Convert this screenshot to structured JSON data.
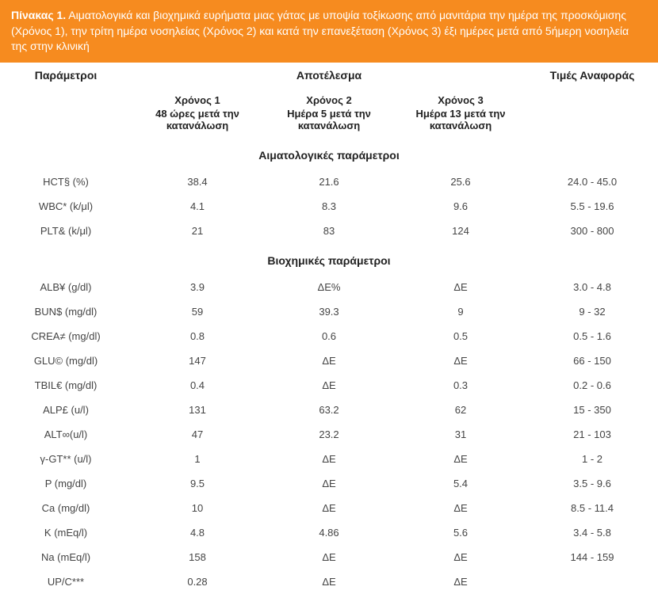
{
  "caption": {
    "bold": "Πίνακας 1.",
    "text": " Αιματολογικά και βιοχημικά ευρήματα μιας γάτας με υποψία τοξίκωσης από μανιτάρια την ημέρα της προσκόμισης (Χρόνος 1), την τρίτη ημέρα νοσηλείας (Χρόνος 2) και κατά την επανεξέταση (Χρόνος 3) έξι ημέρες μετά από 5ήμερη νοσηλεία της στην κλινική"
  },
  "headers": {
    "param": "Παράμετροι",
    "result": "Αποτέλεσμα",
    "ref": "Τιμές Αναφοράς"
  },
  "subheaders": {
    "t1_label": "Χρόνος 1",
    "t1_desc": "48 ώρες μετά την κατανάλωση",
    "t2_label": "Χρόνος 2",
    "t2_desc": "Ημέρα 5 μετά την κατανάλωση",
    "t3_label": "Χρόνος 3",
    "t3_desc": "Ημέρα 13 μετά την κατανάλωση"
  },
  "sections": [
    {
      "title": "Αιματολογικές παράμετροι",
      "rows": [
        {
          "param": "HCT§ (%)",
          "t1": "38.4",
          "t2": "21.6",
          "t3": "25.6",
          "ref": "24.0 - 45.0"
        },
        {
          "param": "WBC* (k/μl)",
          "t1": "4.1",
          "t2": "8.3",
          "t3": "9.6",
          "ref": "5.5 - 19.6"
        },
        {
          "param": "PLT& (k/μl)",
          "t1": "21",
          "t2": "83",
          "t3": "124",
          "ref": "300 - 800"
        }
      ]
    },
    {
      "title": "Βιοχημικές παράμετροι",
      "rows": [
        {
          "param": "ALB¥ (g/dl)",
          "t1": "3.9",
          "t2": "ΔΕ%",
          "t3": "ΔΕ",
          "ref": "3.0 - 4.8"
        },
        {
          "param": "BUN$ (mg/dl)",
          "t1": "59",
          "t2": "39.3",
          "t3": "9",
          "ref": "9 - 32"
        },
        {
          "param": "CREA≠ (mg/dl)",
          "t1": "0.8",
          "t2": "0.6",
          "t3": "0.5",
          "ref": "0.5 - 1.6"
        },
        {
          "param": "GLU© (mg/dl)",
          "t1": "147",
          "t2": "ΔΕ",
          "t3": "ΔΕ",
          "ref": "66 - 150"
        },
        {
          "param": "TBIL€ (mg/dl)",
          "t1": "0.4",
          "t2": "ΔΕ",
          "t3": "0.3",
          "ref": "0.2 - 0.6"
        },
        {
          "param": "ALP£ (u/l)",
          "t1": "131",
          "t2": "63.2",
          "t3": "62",
          "ref": "15 - 350"
        },
        {
          "param": "ALT∞(u/l)",
          "t1": "47",
          "t2": "23.2",
          "t3": "31",
          "ref": "21 - 103"
        },
        {
          "param": "γ-GT** (u/l)",
          "t1": "1",
          "t2": "ΔΕ",
          "t3": "ΔΕ",
          "ref": "1 - 2"
        },
        {
          "param": "P  (mg/dl)",
          "t1": "9.5",
          "t2": "ΔΕ",
          "t3": "5.4",
          "ref": "3.5 - 9.6"
        },
        {
          "param": "Ca (mg/dl)",
          "t1": "10",
          "t2": "ΔΕ",
          "t3": "ΔΕ",
          "ref": "8.5 - 11.4"
        },
        {
          "param": "K (mEq/l)",
          "t1": "4.8",
          "t2": "4.86",
          "t3": "5.6",
          "ref": "3.4 - 5.8"
        },
        {
          "param": "Na (mEq/l)",
          "t1": "158",
          "t2": "ΔΕ",
          "t3": "ΔΕ",
          "ref": "144 - 159"
        },
        {
          "param": "UP/C***",
          "t1": "0.28",
          "t2": "ΔΕ",
          "t3": "ΔΕ",
          "ref": ""
        }
      ]
    }
  ],
  "colors": {
    "caption_bg": "#f68b1f",
    "caption_text": "#ffffff",
    "body_text": "#333333"
  }
}
